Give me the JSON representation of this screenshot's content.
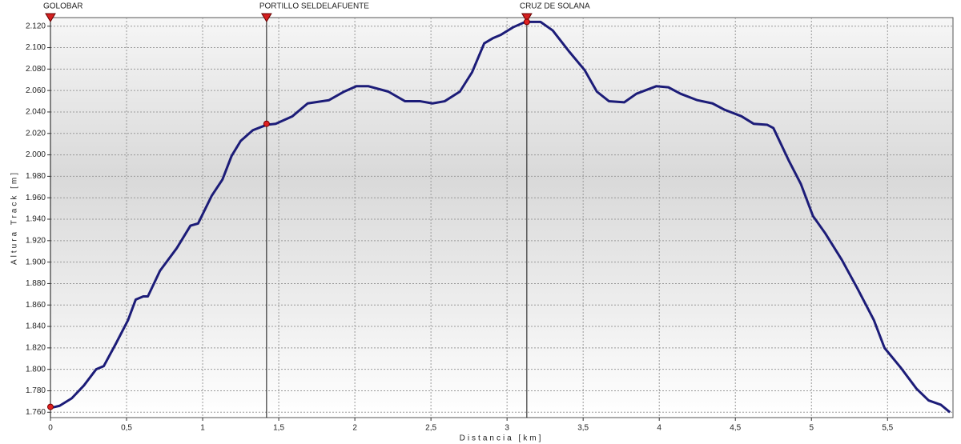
{
  "chart_data": {
    "type": "line",
    "x_label": "Distancia [km]",
    "y_label": "Altura Track [m]",
    "xlim": [
      0,
      5.93
    ],
    "ylim": [
      1755,
      2128
    ],
    "xticks": [
      0,
      {
        "value": 0.5,
        "label": "0,5"
      },
      1,
      {
        "value": 1.5,
        "label": "1,5"
      },
      2,
      {
        "value": 2.5,
        "label": "2,5"
      },
      3,
      {
        "value": 3.5,
        "label": "3,5"
      },
      4,
      {
        "value": 4.5,
        "label": "4,5"
      },
      5,
      {
        "value": 5.5,
        "label": "5,5"
      }
    ],
    "yticks": [
      {
        "value": 1760,
        "label": "1.760"
      },
      {
        "value": 1780,
        "label": "1.780"
      },
      {
        "value": 1800,
        "label": "1.800"
      },
      {
        "value": 1820,
        "label": "1.820"
      },
      {
        "value": 1840,
        "label": "1.840"
      },
      {
        "value": 1860,
        "label": "1.860"
      },
      {
        "value": 1880,
        "label": "1.880"
      },
      {
        "value": 1900,
        "label": "1.900"
      },
      {
        "value": 1920,
        "label": "1.920"
      },
      {
        "value": 1940,
        "label": "1.940"
      },
      {
        "value": 1960,
        "label": "1.960"
      },
      {
        "value": 1980,
        "label": "1.980"
      },
      {
        "value": 2000,
        "label": "2.000"
      },
      {
        "value": 2020,
        "label": "2.020"
      },
      {
        "value": 2040,
        "label": "2.040"
      },
      {
        "value": 2060,
        "label": "2.060"
      },
      {
        "value": 2080,
        "label": "2.080"
      },
      {
        "value": 2100,
        "label": "2.100"
      },
      {
        "value": 2120,
        "label": "2.120"
      }
    ],
    "grid": true,
    "series": [
      {
        "color": "#1c1c78",
        "x": [
          0,
          0.06,
          0.14,
          0.22,
          0.3,
          0.35,
          0.43,
          0.51,
          0.56,
          0.61,
          0.64,
          0.72,
          0.83,
          0.92,
          0.97,
          1.06,
          1.13,
          1.19,
          1.25,
          1.33,
          1.42,
          1.48,
          1.59,
          1.69,
          1.83,
          1.93,
          2.01,
          2.09,
          2.22,
          2.33,
          2.43,
          2.51,
          2.59,
          2.69,
          2.77,
          2.85,
          2.91,
          2.96,
          3.04,
          3.12,
          3.22,
          3.3,
          3.41,
          3.51,
          3.59,
          3.67,
          3.77,
          3.85,
          3.98,
          4.06,
          4.14,
          4.25,
          4.35,
          4.43,
          4.54,
          4.62,
          4.71,
          4.75,
          4.85,
          4.93,
          5.01,
          5.09,
          5.2,
          5.3,
          5.41,
          5.48,
          5.59,
          5.69,
          5.77,
          5.85,
          5.91
        ],
        "values": [
          1764,
          1766,
          1773,
          1785,
          1800,
          1803,
          1824,
          1846,
          1865,
          1868,
          1868,
          1892,
          1913,
          1934,
          1936,
          1962,
          1977,
          1999,
          2013,
          2023,
          2028,
          2029,
          2036,
          2048,
          2051,
          2059,
          2064,
          2064,
          2059,
          2050,
          2050,
          2048,
          2050,
          2059,
          2077,
          2104,
          2109,
          2112,
          2119,
          2124,
          2124,
          2116,
          2096,
          2079,
          2059,
          2050,
          2049,
          2057,
          2064,
          2063,
          2057,
          2051,
          2048,
          2042,
          2036,
          2029,
          2028,
          2025,
          1995,
          1973,
          1943,
          1927,
          1902,
          1876,
          1846,
          1820,
          1801,
          1782,
          1771,
          1767,
          1760
        ]
      }
    ],
    "waypoints": [
      {
        "label": "GOLOBAR",
        "x": 0,
        "y": 1765
      },
      {
        "label": "PORTILLO SELDELAFUENTE",
        "x": 1.42,
        "y": 2029
      },
      {
        "label": "CRUZ DE SOLANA",
        "x": 3.13,
        "y": 2124
      }
    ]
  }
}
